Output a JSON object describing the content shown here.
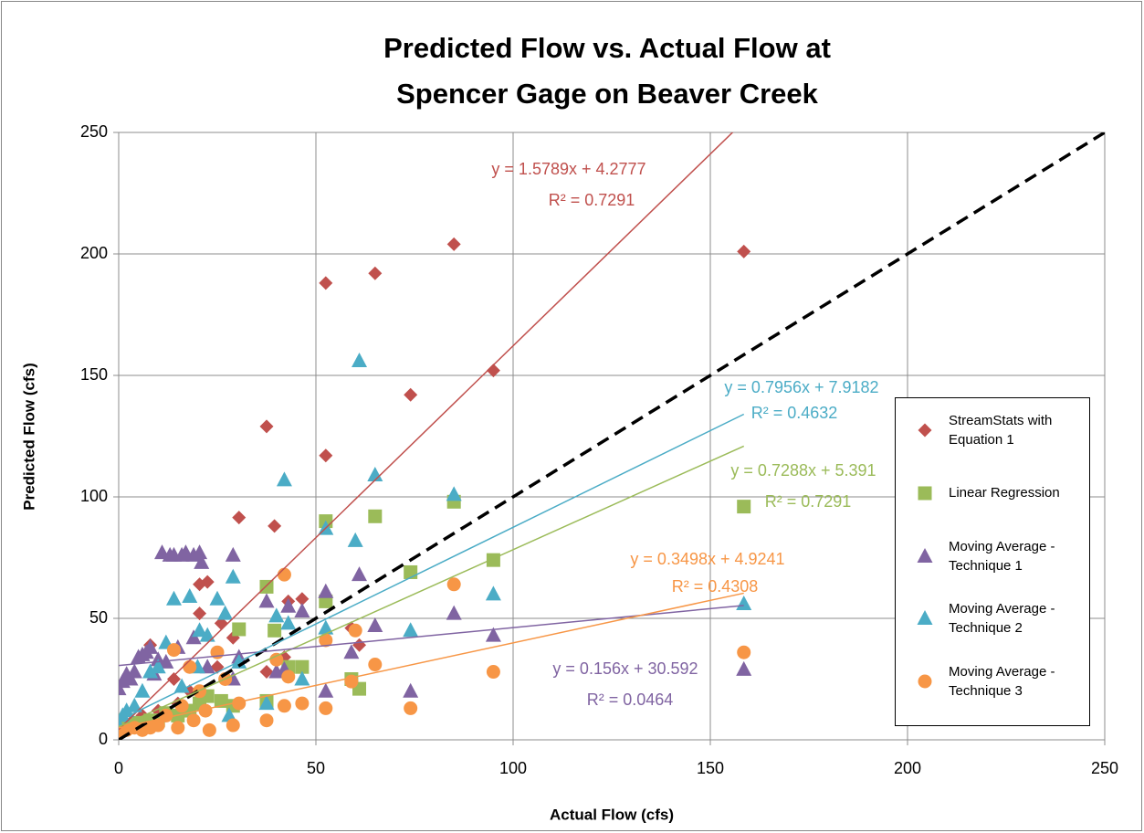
{
  "chart_data": {
    "type": "scatter",
    "title": "Predicted Flow vs. Actual Flow at Spencer Gage on Beaver Creek",
    "x_label": "Actual Flow (cfs)",
    "y_label": "Predicted Flow (cfs)",
    "xlim": [
      0,
      250
    ],
    "ylim": [
      0,
      250
    ],
    "xticks": [
      0,
      50,
      100,
      150,
      200,
      250
    ],
    "yticks": [
      0,
      50,
      100,
      150,
      200,
      250
    ],
    "grid": true,
    "legend": "right",
    "series": [
      {
        "name": "StreamStats with Equation 1",
        "color": "#c0504d",
        "marker": "diamond",
        "x": [
          158.5,
          85,
          65,
          52.5,
          95,
          74,
          37.5,
          52.5,
          30.5,
          39.5,
          22.5,
          20.5,
          20.5,
          26,
          43,
          46.5,
          59,
          61,
          42,
          37.5,
          8,
          29,
          18,
          15,
          10,
          5,
          2,
          1,
          0,
          12,
          25,
          14,
          6,
          3
        ],
        "y": [
          201,
          204,
          192,
          188,
          152,
          142,
          129,
          117,
          91.5,
          88,
          65,
          64,
          52,
          48,
          57,
          58,
          46,
          39,
          34,
          28,
          39,
          42,
          20,
          15,
          12,
          8,
          6,
          5,
          4,
          10,
          30,
          25,
          10,
          7
        ],
        "trendline": {
          "slope": 1.5789,
          "intercept": 4.2777,
          "equation": "y = 1.5789x + 4.2777",
          "r_squared": "R² = 0.7291"
        }
      },
      {
        "name": "Linear Regression",
        "color": "#9bbb59",
        "marker": "square",
        "x": [
          158.5,
          85,
          65,
          52.5,
          95,
          74,
          37.5,
          52.5,
          30.5,
          39.5,
          59,
          61,
          46.5,
          43,
          37.5,
          22.5,
          20.5,
          26,
          29,
          15,
          10,
          5,
          2,
          0,
          1,
          8,
          12,
          18
        ],
        "y": [
          96,
          98,
          92,
          90,
          74,
          69,
          63,
          57,
          45.5,
          45,
          25,
          21,
          30,
          30,
          16,
          18,
          15,
          16,
          14,
          10,
          8,
          7,
          6,
          8,
          5,
          8,
          11,
          12
        ],
        "trendline": {
          "slope": 0.7288,
          "intercept": 5.391,
          "equation": "y = 0.7288x + 5.391",
          "r_squared": "R² = 0.7291"
        }
      },
      {
        "name": "Moving Average - Technique 1",
        "color": "#8064a2",
        "marker": "triangle",
        "x": [
          158.5,
          95,
          85,
          74,
          65,
          61,
          59,
          52.5,
          52.5,
          46.5,
          43,
          42,
          40,
          37.5,
          30.5,
          29,
          29,
          22.5,
          20.5,
          21,
          19,
          17,
          16,
          14,
          13,
          11,
          10,
          8,
          7,
          6,
          5,
          4,
          3,
          2,
          1,
          0,
          19,
          12,
          9,
          15
        ],
        "y": [
          29,
          43,
          52,
          20,
          47,
          68,
          36,
          61,
          20,
          53,
          55,
          29,
          28,
          57,
          34,
          76,
          25,
          30,
          77,
          73,
          76,
          77,
          76,
          76,
          76,
          77,
          33,
          38,
          36,
          35,
          34,
          28,
          25,
          27,
          24,
          21,
          42,
          32,
          27,
          38
        ],
        "trendline": {
          "slope": 0.156,
          "intercept": 30.592,
          "equation": "y = 0.156x + 30.592",
          "r_squared": "R² = 0.0464"
        }
      },
      {
        "name": "Moving Average - Technique 2",
        "color": "#4bacc6",
        "marker": "triangle",
        "x": [
          158.5,
          95,
          85,
          74,
          65,
          61,
          60,
          52.5,
          52.5,
          46.5,
          43,
          42,
          40,
          37.5,
          30.5,
          29,
          27,
          25,
          22.5,
          20.5,
          18,
          14,
          12,
          10,
          8,
          6,
          4,
          2,
          1,
          0,
          16,
          20,
          28
        ],
        "y": [
          56,
          60,
          101,
          45,
          109,
          156,
          82,
          87,
          46,
          25,
          48,
          107,
          51,
          15,
          32,
          67,
          52,
          58,
          43,
          45,
          59,
          58,
          40,
          30,
          28,
          20,
          14,
          12,
          10,
          6,
          22,
          30,
          10
        ],
        "trendline": {
          "slope": 0.7956,
          "intercept": 7.9182,
          "equation": "y = 0.7956x + 7.9182",
          "r_squared": "R² = 0.4632"
        }
      },
      {
        "name": "Moving Average - Technique 3",
        "color": "#f79646",
        "marker": "circle",
        "x": [
          158.5,
          95,
          85,
          74,
          65,
          60,
          59,
          52.5,
          52.5,
          46.5,
          43,
          42,
          42,
          40,
          37.5,
          30.5,
          29,
          27,
          25,
          23,
          20.5,
          18,
          14,
          12,
          10,
          8,
          6,
          4,
          2,
          0,
          16,
          19,
          22,
          15
        ],
        "y": [
          36,
          28,
          64,
          13,
          31,
          45,
          24,
          41,
          13,
          15,
          26,
          68,
          14,
          33,
          8,
          15,
          6,
          25,
          36,
          4,
          20,
          30,
          37,
          10,
          6,
          5,
          4,
          5,
          4,
          3,
          14,
          8,
          12,
          5
        ],
        "trendline": {
          "slope": 0.3498,
          "intercept": 4.9241,
          "equation": "y = 0.3498x + 4.9241",
          "r_squared": "R² = 0.4308"
        }
      }
    ]
  }
}
